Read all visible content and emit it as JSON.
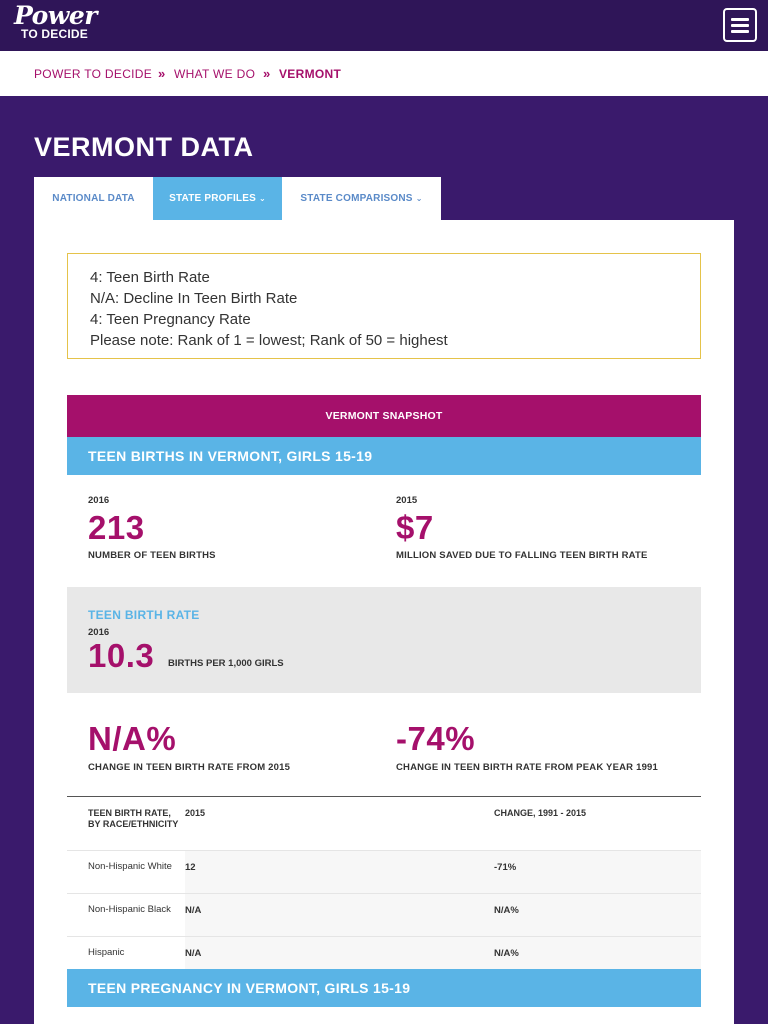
{
  "header": {
    "logo_top": "Power",
    "logo_bottom": "TO DECIDE",
    "menu_label": "menu"
  },
  "breadcrumb": {
    "items": [
      "POWER TO DECIDE",
      "WHAT WE DO",
      "VERMONT"
    ],
    "separator": "»"
  },
  "page_title": "VERMONT DATA",
  "tabs": [
    {
      "label": "NATIONAL DATA"
    },
    {
      "label": "STATE PROFILES",
      "dropdown": "›"
    },
    {
      "label": "STATE COMPARISONS",
      "dropdown": "›"
    }
  ],
  "ranks": [
    "4: Teen Birth Rate",
    "N/A: Decline In Teen Birth Rate",
    "4: Teen Pregnancy Rate",
    "Please note: Rank of 1 = lowest; Rank of 50 = highest"
  ],
  "snapshot_title": "VERMONT SNAPSHOT",
  "teen_births": {
    "title": "TEEN BIRTHS IN VERMONT, GIRLS 15-19",
    "stat1": {
      "year": "2016",
      "value": "213",
      "label": "NUMBER OF TEEN BIRTHS"
    },
    "stat2": {
      "year": "2015",
      "value": "$7",
      "label": "MILLION SAVED DUE TO FALLING TEEN BIRTH RATE"
    },
    "rate": {
      "title": "TEEN BIRTH RATE",
      "year": "2016",
      "value": "10.3",
      "unit": "BIRTHS PER 1,000 GIRLS"
    },
    "change1": {
      "value": "N/A%",
      "label": "CHANGE IN TEEN BIRTH RATE FROM 2015"
    },
    "change2": {
      "value": "-74%",
      "label": "CHANGE IN TEEN BIRTH RATE FROM PEAK YEAR 1991"
    }
  },
  "table": {
    "headers": [
      "TEEN BIRTH RATE, BY RACE/ETHNICITY",
      "2015",
      "CHANGE, 1991 - 2015"
    ],
    "rows": [
      {
        "group": "Non-Hispanic White",
        "value": "12",
        "change": "-71%"
      },
      {
        "group": "Non-Hispanic Black",
        "value": "N/A",
        "change": "N/A%"
      },
      {
        "group": "Hispanic",
        "value": "N/A",
        "change": "N/A%"
      }
    ]
  },
  "teen_pregnancy": {
    "title": "TEEN PREGNANCY IN VERMONT, GIRLS 15-19"
  },
  "colors": {
    "header_purple": "#2f1558",
    "section_purple": "#3a1a6c",
    "magenta": "#a5106b",
    "blue": "#5ab4e6",
    "rank_border": "#e5c34a"
  }
}
